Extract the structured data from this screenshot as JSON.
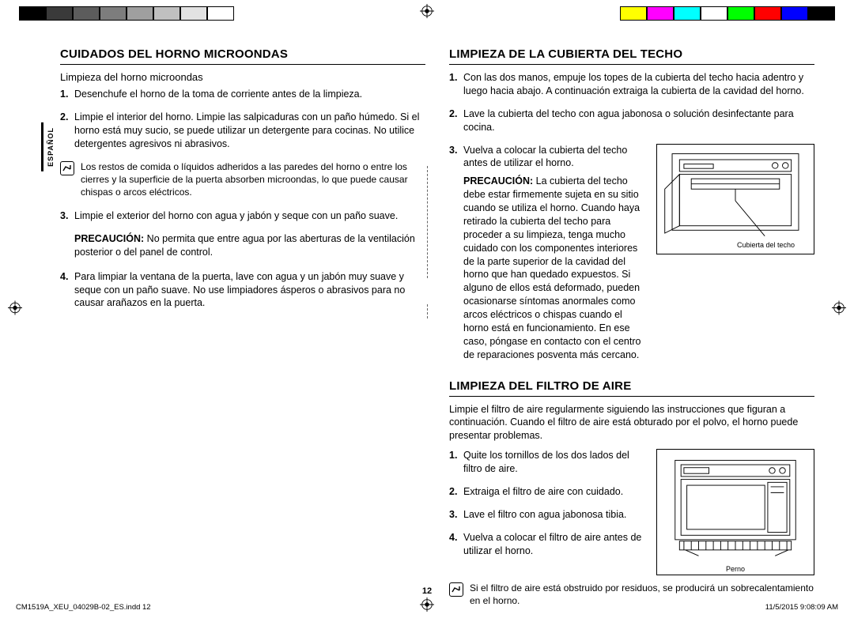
{
  "colorBar": {
    "left": [
      "#000000",
      "#3a3a3a",
      "#5c5c5c",
      "#7d7d7d",
      "#9f9f9f",
      "#c0c0c0",
      "#e2e2e2",
      "#ffffff"
    ],
    "right": [
      "#ffff00",
      "#ff00ff",
      "#00ffff",
      "#ffffff",
      "#00ff00",
      "#ff0000",
      "#0000ff",
      "#000000"
    ]
  },
  "langTab": "ESPAÑOL",
  "left": {
    "h1": "CUIDADOS DEL HORNO MICROONDAS",
    "sub": "Limpieza del horno microondas",
    "s1": "Desenchufe el horno de la toma de corriente antes de la limpieza.",
    "s2": "Limpie el interior del horno. Limpie las salpicaduras con un paño húmedo. Si el horno está muy sucio, se puede utilizar un detergente para cocinas. No utilice detergentes agresivos ni abrasivos.",
    "note1": "Los restos de comida o líquidos adheridos a las paredes del horno o entre los cierres y la superficie de la puerta absorben microondas, lo que puede causar chispas o arcos eléctricos.",
    "s3": "Limpie el exterior del horno con agua y jabón y seque con un paño suave.",
    "caution3_label": "PRECAUCIÓN:",
    "caution3": " No permita que entre agua por las aberturas de la ventilación posterior o del panel de control.",
    "s4": "Para limpiar la ventana de la puerta, lave con agua y un jabón muy suave y seque con un paño suave. No use limpiadores ásperos o abrasivos para no causar arañazos en la puerta."
  },
  "rightTop": {
    "h1": "LIMPIEZA DE LA CUBIERTA DEL TECHO",
    "s1": "Con las dos manos, empuje los topes de la cubierta del techo hacia adentro y luego hacia abajo. A continuación extraiga la cubierta de la cavidad del horno.",
    "s2": "Lave la cubierta del techo con agua jabonosa o solución desinfectante para cocina.",
    "s3a": "Vuelva a colocar la cubierta del techo antes de utilizar el horno.",
    "caution_label": "PRECAUCIÓN:",
    "caution_body": " La cubierta del techo debe estar firmemente sujeta en su sitio cuando se utiliza el horno. Cuando haya retirado la cubierta del techo para proceder a su limpieza, tenga mucho cuidado con los componentes interiores de la parte superior de la cavidad del horno que han quedado expuestos. Si alguno de ellos está deformado, pueden ocasionarse síntomas anormales como arcos eléctricos o chispas cuando el horno está en funcionamiento. En ese caso, póngase en contacto con el centro de reparaciones posventa más cercano.",
    "fig_caption": "Cubierta del techo"
  },
  "rightBottom": {
    "h1": "LIMPIEZA DEL FILTRO DE AIRE",
    "intro": "Limpie el filtro de aire regularmente siguiendo las instrucciones que figuran a continuación. Cuando el filtro de aire está obturado por el polvo, el horno puede presentar problemas.",
    "s1": "Quite los tornillos de los dos lados del filtro de aire.",
    "s2": "Extraiga el filtro de aire con cuidado.",
    "s3": "Lave el filtro con agua jabonosa tibia.",
    "s4": "Vuelva a colocar el filtro de aire antes de utilizar el horno.",
    "note": "Si el filtro de aire está obstruido por residuos, se producirá un sobrecalentamiento en el horno.",
    "fig_caption": "Perno"
  },
  "pageNum": "12",
  "footer": {
    "left": "CM1519A_XEU_04029B-02_ES.indd   12",
    "right": "11/5/2015   9:08:09 AM"
  }
}
